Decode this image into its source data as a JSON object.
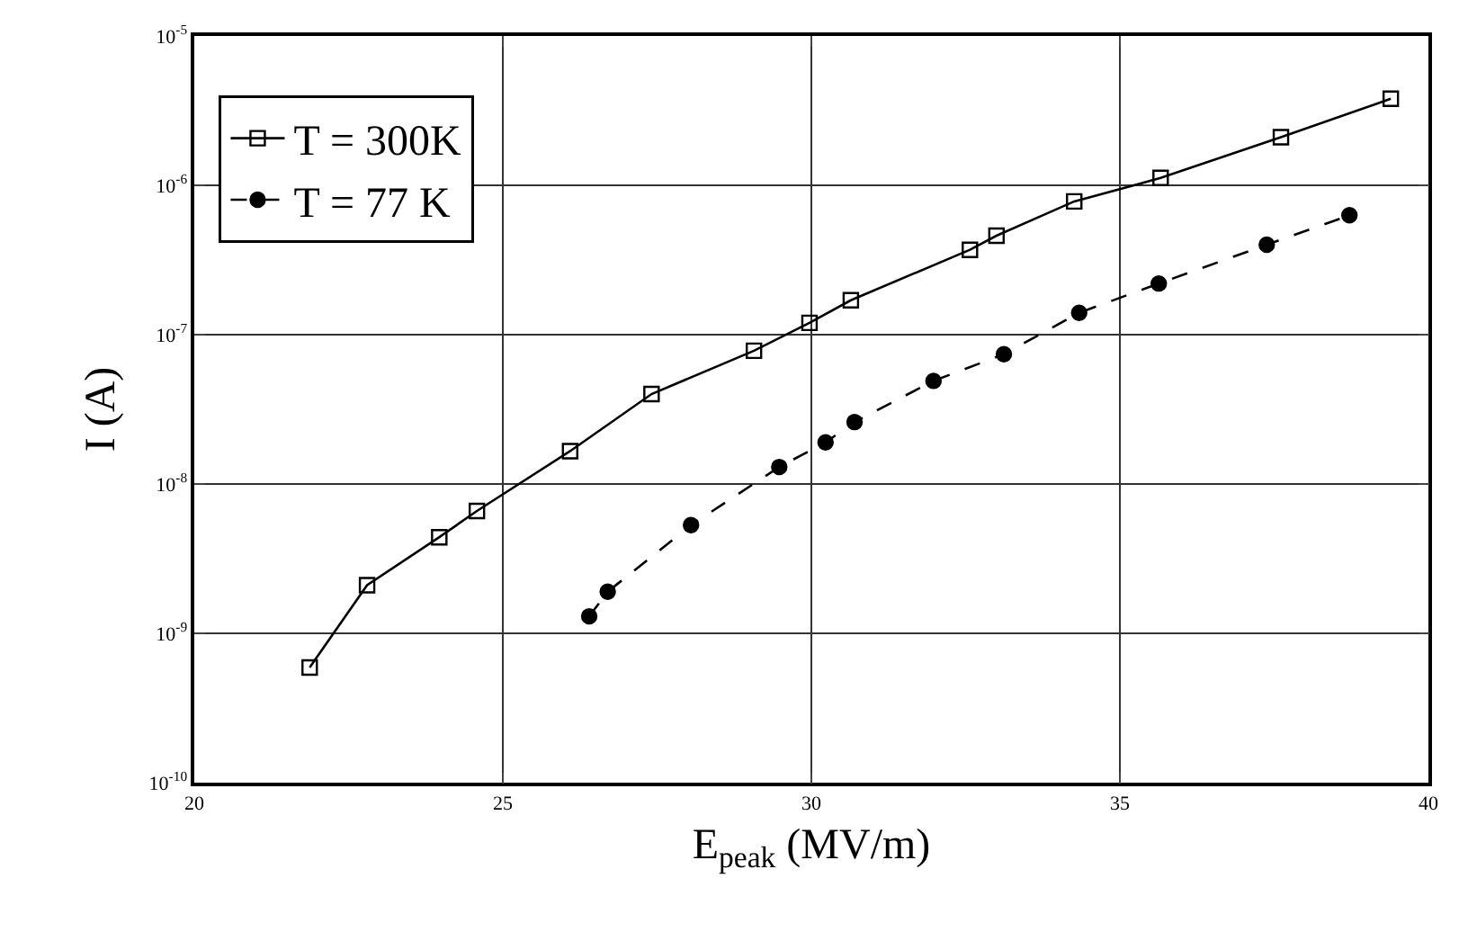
{
  "chart_data": {
    "type": "line",
    "xlabel": "E$_{peak}$ (MV/m)",
    "ylabel": "I (A)",
    "log": "y",
    "xlim": [
      20,
      40
    ],
    "xticks": [
      20,
      25,
      30,
      35,
      40
    ],
    "ylim": [
      1e-10,
      1e-05
    ],
    "yticks": [
      {
        "value": 1e-10,
        "label": "10$^{-10}$"
      },
      {
        "value": 1e-09,
        "label": "10$^{-9}$"
      },
      {
        "value": 1e-08,
        "label": "10$^{-8}$"
      },
      {
        "value": 1e-07,
        "label": "10$^{-7}$"
      },
      {
        "value": 1e-06,
        "label": "10$^{-6}$"
      },
      {
        "value": 1e-05,
        "label": "10$^{-5}$"
      }
    ],
    "grid": true,
    "legend": "top left",
    "series": [
      {
        "name": "T = 300K",
        "color": "#000000",
        "marker": "square",
        "line_style": "solid",
        "x": [
          21.87,
          22.8,
          23.97,
          24.58,
          26.09,
          27.41,
          29.07,
          29.97,
          30.64,
          32.57,
          33.0,
          34.26,
          35.66,
          37.61,
          39.39
        ],
        "values": [
          5.9e-10,
          2.1e-09,
          4.4e-09,
          6.6e-09,
          1.66e-08,
          4e-08,
          7.8e-08,
          1.2e-07,
          1.7e-07,
          3.7e-07,
          4.6e-07,
          7.8e-07,
          1.12e-06,
          2.1e-06,
          3.8e-06
        ]
      },
      {
        "name": "T = 77 K",
        "color": "#000000",
        "marker": "circle",
        "line_style": "dashed",
        "x": [
          26.4,
          26.7,
          28.05,
          29.48,
          30.23,
          30.7,
          31.98,
          33.12,
          34.34,
          35.63,
          37.38,
          38.72
        ],
        "values": [
          1.3e-09,
          1.9e-09,
          5.3e-09,
          1.3e-08,
          1.9e-08,
          2.6e-08,
          4.9e-08,
          7.4e-08,
          1.4e-07,
          2.2e-07,
          4e-07,
          6.3e-07
        ]
      }
    ]
  }
}
